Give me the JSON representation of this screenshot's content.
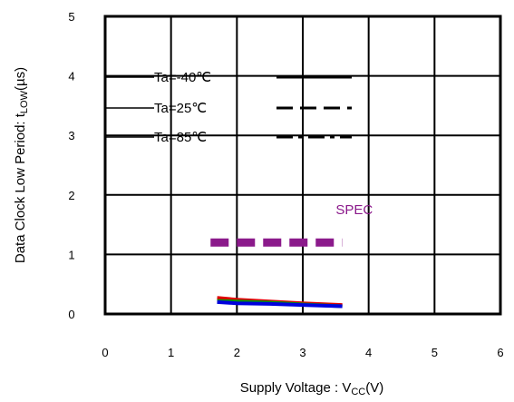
{
  "chart_data": {
    "type": "line",
    "xlabel": "Supply Voltage : V",
    "xlabel_sub": "CC",
    "xlabel_suffix": "(V)",
    "ylabel": "Data Clock Low Period: t",
    "ylabel_sub": "LOW",
    "ylabel_suffix": "(µs)",
    "xlim": [
      0,
      6
    ],
    "ylim": [
      0,
      5
    ],
    "xticks": [
      "0",
      "1",
      "2",
      "3",
      "4",
      "5",
      "6"
    ],
    "yticks": [
      "0",
      "1",
      "2",
      "3",
      "4",
      "5"
    ],
    "grid": true,
    "legend": [
      {
        "label": "Ta=-40℃",
        "style": "solid"
      },
      {
        "label": "Ta=25℃",
        "style": "dashed"
      },
      {
        "label": "Ta=85℃",
        "style": "dashdot"
      }
    ],
    "legend_position": "top-left",
    "annotation": {
      "text": "SPEC",
      "color": "#8b1a8b",
      "x": 3.5,
      "y": 1.68
    },
    "spec_line": {
      "x": [
        1.6,
        3.6
      ],
      "y": [
        1.2,
        1.2
      ],
      "color": "#8b1a8b"
    },
    "series": [
      {
        "color": "#e00000",
        "x": [
          1.7,
          2.0,
          2.5,
          3.0,
          3.6
        ],
        "y": [
          0.27,
          0.24,
          0.21,
          0.18,
          0.15
        ]
      },
      {
        "color": "#009900",
        "x": [
          1.7,
          2.0,
          2.5,
          3.0,
          3.6
        ],
        "y": [
          0.22,
          0.21,
          0.19,
          0.16,
          0.13
        ]
      },
      {
        "color": "#0000dd",
        "x": [
          1.7,
          2.0,
          2.5,
          3.0,
          3.6
        ],
        "y": [
          0.2,
          0.18,
          0.17,
          0.15,
          0.13
        ]
      }
    ]
  }
}
